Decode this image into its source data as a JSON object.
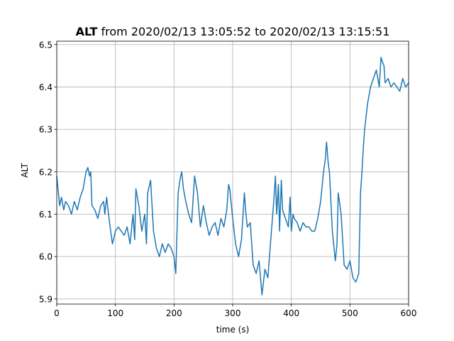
{
  "chart_data": {
    "type": "line",
    "title_bold": "ALT",
    "title_rest": " from 2020/02/13 13:05:52 to 2020/02/13 13:15:51",
    "xlabel": "time (s)",
    "ylabel": "ALT",
    "xlim": [
      0,
      600
    ],
    "ylim": [
      5.888,
      6.508
    ],
    "grid": true,
    "line_color": "#1f77b4",
    "x_ticks": [
      0,
      100,
      200,
      300,
      400,
      500,
      600
    ],
    "x_tick_labels": [
      "0",
      "100",
      "200",
      "300",
      "400",
      "500",
      "600"
    ],
    "y_ticks": [
      5.9,
      6.0,
      6.1,
      6.2,
      6.3,
      6.4,
      6.5
    ],
    "y_tick_labels": [
      "5.9",
      "6.0",
      "6.1",
      "6.2",
      "6.3",
      "6.4",
      "6.5"
    ],
    "series": [
      {
        "x": [
          0,
          2,
          5,
          8,
          12,
          15,
          20,
          25,
          30,
          35,
          40,
          45,
          50,
          53,
          56,
          58,
          60,
          65,
          70,
          75,
          80,
          82,
          85,
          90,
          95,
          100,
          105,
          110,
          115,
          120,
          125,
          130,
          133,
          135,
          140,
          145,
          150,
          153,
          155,
          160,
          165,
          170,
          175,
          180,
          185,
          190,
          195,
          200,
          203,
          207,
          210,
          213,
          216,
          220,
          225,
          230,
          235,
          240,
          243,
          245,
          250,
          255,
          260,
          265,
          270,
          275,
          280,
          285,
          290,
          293,
          295,
          300,
          305,
          310,
          315,
          320,
          322,
          325,
          330,
          335,
          340,
          345,
          350,
          355,
          360,
          365,
          370,
          373,
          375,
          378,
          380,
          383,
          385,
          390,
          395,
          398,
          400,
          403,
          405,
          410,
          415,
          420,
          425,
          430,
          435,
          440,
          445,
          450,
          455,
          458,
          460,
          463,
          465,
          470,
          475,
          478,
          480,
          485,
          490,
          495,
          500,
          505,
          510,
          515,
          518,
          520,
          523,
          525,
          530,
          535,
          540,
          545,
          550,
          553,
          555,
          558,
          560,
          565,
          570,
          575,
          580,
          585,
          590,
          595,
          600
        ],
        "y": [
          6.19,
          6.16,
          6.12,
          6.14,
          6.11,
          6.13,
          6.12,
          6.1,
          6.13,
          6.11,
          6.14,
          6.16,
          6.2,
          6.21,
          6.19,
          6.2,
          6.12,
          6.11,
          6.09,
          6.12,
          6.13,
          6.1,
          6.14,
          6.08,
          6.03,
          6.06,
          6.07,
          6.06,
          6.05,
          6.07,
          6.03,
          6.1,
          6.04,
          6.16,
          6.12,
          6.06,
          6.1,
          6.03,
          6.15,
          6.18,
          6.06,
          6.02,
          6.0,
          6.03,
          6.01,
          6.03,
          6.02,
          6.0,
          5.96,
          6.15,
          6.18,
          6.2,
          6.16,
          6.13,
          6.1,
          6.08,
          6.19,
          6.15,
          6.1,
          6.07,
          6.12,
          6.08,
          6.05,
          6.07,
          6.08,
          6.05,
          6.09,
          6.07,
          6.11,
          6.17,
          6.16,
          6.09,
          6.03,
          6.0,
          6.04,
          6.15,
          6.11,
          6.07,
          6.08,
          5.98,
          5.96,
          5.99,
          5.91,
          5.97,
          5.95,
          6.04,
          6.13,
          6.19,
          6.1,
          6.17,
          6.06,
          6.18,
          6.11,
          6.09,
          6.07,
          6.14,
          6.06,
          6.1,
          6.09,
          6.08,
          6.06,
          6.08,
          6.07,
          6.07,
          6.06,
          6.06,
          6.09,
          6.13,
          6.2,
          6.23,
          6.27,
          6.22,
          6.2,
          6.06,
          5.99,
          6.03,
          6.15,
          6.1,
          5.98,
          5.97,
          5.99,
          5.95,
          5.94,
          5.96,
          6.15,
          6.19,
          6.26,
          6.3,
          6.36,
          6.4,
          6.42,
          6.44,
          6.4,
          6.47,
          6.46,
          6.45,
          6.41,
          6.42,
          6.4,
          6.41,
          6.4,
          6.39,
          6.42,
          6.4,
          6.41
        ]
      }
    ]
  }
}
